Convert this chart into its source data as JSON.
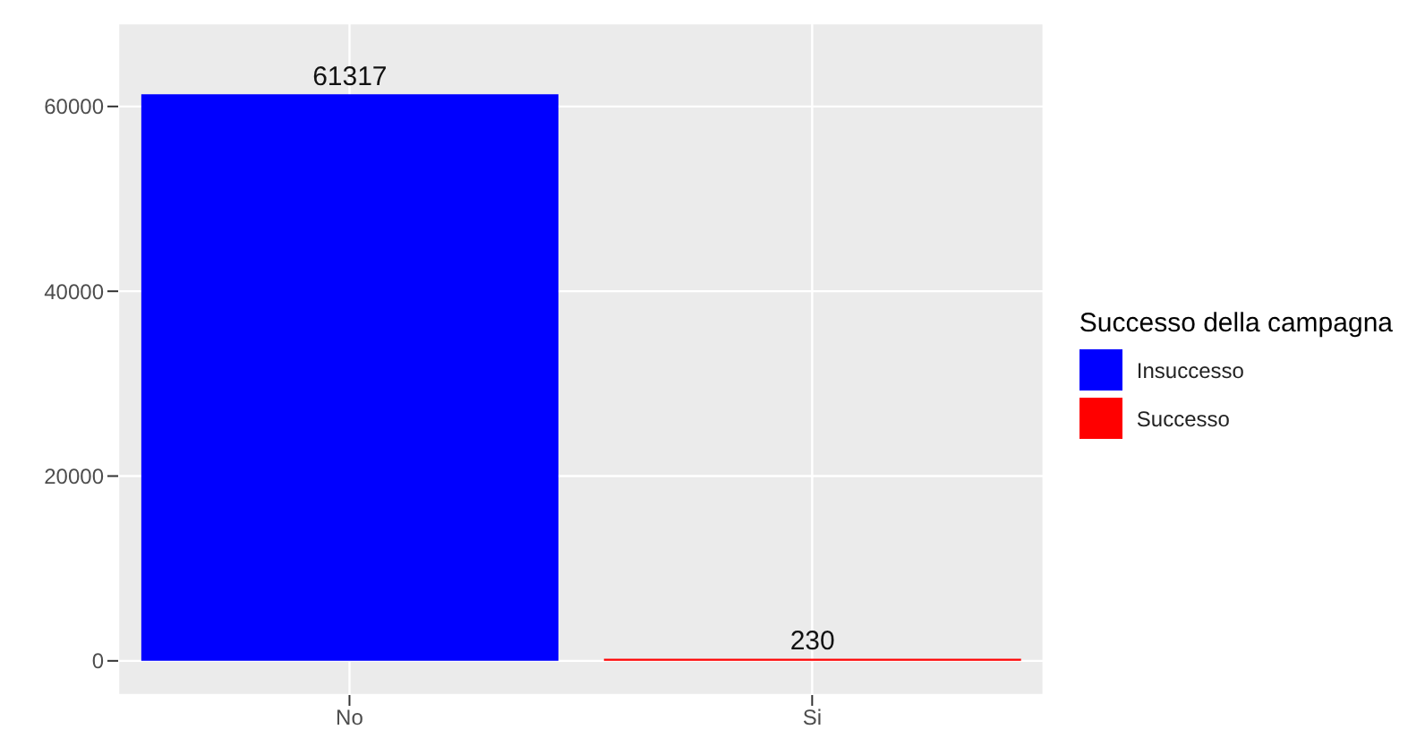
{
  "chart_data": {
    "type": "bar",
    "legend_title": "Successo della campagna",
    "categories": [
      "No",
      "Si"
    ],
    "series": [
      {
        "name": "Insuccesso",
        "color": "#0000ff",
        "values": [
          61317,
          null
        ]
      },
      {
        "name": "Successo",
        "color": "#ff0000",
        "values": [
          null,
          230
        ]
      }
    ],
    "stacked": true,
    "ylim": [
      -3700,
      69000
    ],
    "yticks": [
      0,
      20000,
      40000,
      60000
    ],
    "grid": true,
    "legend": "right",
    "data_labels": true
  }
}
